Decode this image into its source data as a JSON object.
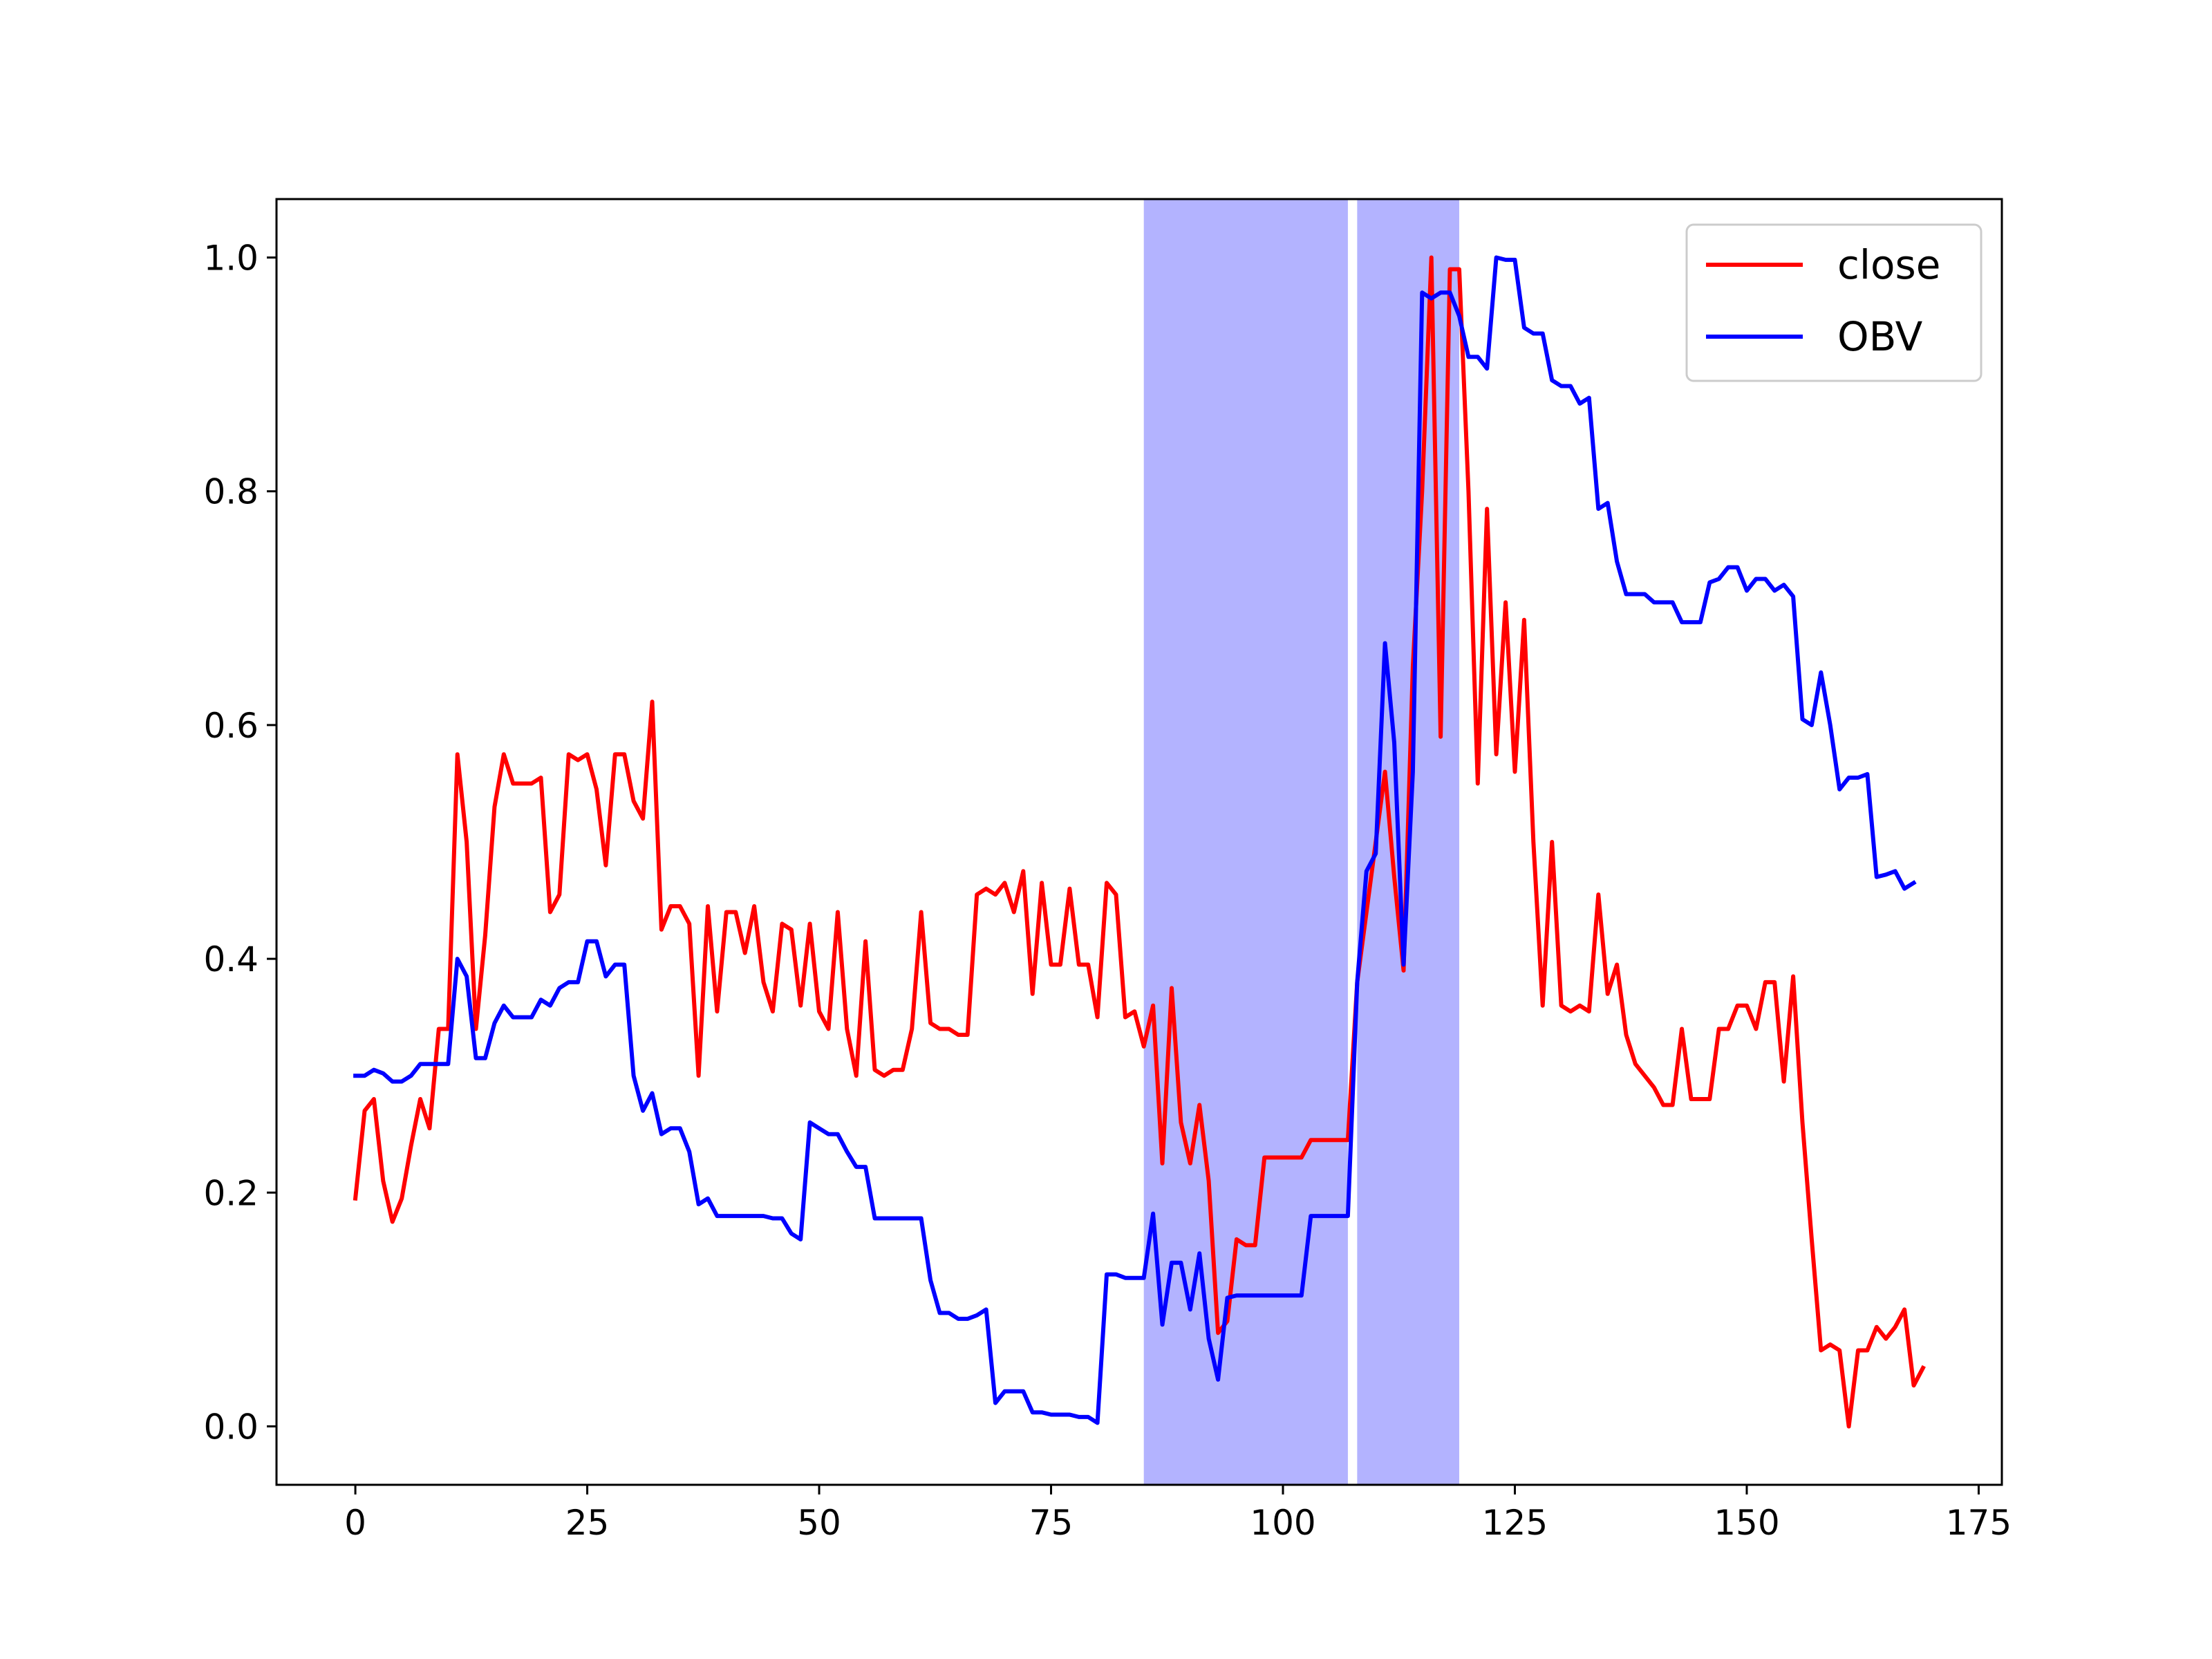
{
  "chart_data": {
    "type": "line",
    "title": "",
    "xlabel": "",
    "ylabel": "",
    "xlim": [
      -8.5,
      177.5
    ],
    "ylim": [
      -0.05,
      1.05
    ],
    "x_ticks": [
      0,
      25,
      50,
      75,
      100,
      125,
      150,
      175
    ],
    "x_tick_labels": [
      "0",
      "25",
      "50",
      "75",
      "100",
      "125",
      "150",
      "175"
    ],
    "y_ticks": [
      0.0,
      0.2,
      0.4,
      0.6,
      0.8,
      1.0
    ],
    "y_tick_labels": [
      "0.0",
      "0.2",
      "0.4",
      "0.6",
      "0.8",
      "1.0"
    ],
    "grid": false,
    "legend_position": "upper-right",
    "highlight_spans": [
      {
        "x_start": 85,
        "x_end": 107,
        "color": "#b3b3ff"
      },
      {
        "x_start": 108,
        "x_end": 119,
        "color": "#b3b3ff"
      }
    ],
    "series": [
      {
        "name": "close",
        "color": "#ff0000",
        "y": [
          0.195,
          0.27,
          0.28,
          0.21,
          0.175,
          0.195,
          0.24,
          0.28,
          0.255,
          0.34,
          0.34,
          0.575,
          0.5,
          0.34,
          0.42,
          0.53,
          0.575,
          0.55,
          0.55,
          0.55,
          0.555,
          0.44,
          0.455,
          0.575,
          0.57,
          0.575,
          0.545,
          0.48,
          0.575,
          0.575,
          0.535,
          0.52,
          0.62,
          0.425,
          0.445,
          0.445,
          0.43,
          0.3,
          0.445,
          0.355,
          0.44,
          0.44,
          0.405,
          0.445,
          0.38,
          0.355,
          0.43,
          0.425,
          0.36,
          0.43,
          0.355,
          0.34,
          0.44,
          0.34,
          0.3,
          0.415,
          0.305,
          0.3,
          0.305,
          0.305,
          0.34,
          0.44,
          0.345,
          0.34,
          0.34,
          0.335,
          0.335,
          0.455,
          0.46,
          0.455,
          0.465,
          0.44,
          0.475,
          0.37,
          0.465,
          0.395,
          0.395,
          0.46,
          0.395,
          0.395,
          0.35,
          0.465,
          0.455,
          0.35,
          0.355,
          0.325,
          0.36,
          0.225,
          0.375,
          0.26,
          0.225,
          0.275,
          0.21,
          0.08,
          0.09,
          0.16,
          0.155,
          0.155,
          0.23,
          0.23,
          0.23,
          0.23,
          0.23,
          0.245,
          0.245,
          0.245,
          0.245,
          0.245,
          0.38,
          0.44,
          0.5,
          0.56,
          0.47,
          0.39,
          0.65,
          0.8,
          1.0,
          0.59,
          0.99,
          0.99,
          0.8,
          0.55,
          0.785,
          0.575,
          0.705,
          0.56,
          0.69,
          0.5,
          0.36,
          0.5,
          0.36,
          0.355,
          0.36,
          0.355,
          0.455,
          0.37,
          0.395,
          0.335,
          0.31,
          0.3,
          0.29,
          0.275,
          0.275,
          0.34,
          0.28,
          0.28,
          0.28,
          0.34,
          0.34,
          0.36,
          0.36,
          0.34,
          0.38,
          0.38,
          0.295,
          0.385,
          0.26,
          0.16,
          0.065,
          0.07,
          0.065,
          0.0,
          0.065,
          0.065,
          0.085,
          0.075,
          0.085,
          0.1,
          0.035,
          0.05
        ]
      },
      {
        "name": "OBV",
        "color": "#0000ff",
        "y": [
          0.3,
          0.3,
          0.305,
          0.302,
          0.295,
          0.295,
          0.3,
          0.31,
          0.31,
          0.31,
          0.31,
          0.4,
          0.385,
          0.315,
          0.315,
          0.345,
          0.36,
          0.35,
          0.35,
          0.35,
          0.365,
          0.36,
          0.375,
          0.38,
          0.38,
          0.415,
          0.415,
          0.385,
          0.395,
          0.395,
          0.3,
          0.27,
          0.285,
          0.25,
          0.255,
          0.255,
          0.235,
          0.19,
          0.195,
          0.18,
          0.18,
          0.18,
          0.18,
          0.18,
          0.18,
          0.178,
          0.178,
          0.165,
          0.16,
          0.26,
          0.255,
          0.25,
          0.25,
          0.235,
          0.222,
          0.222,
          0.178,
          0.178,
          0.178,
          0.178,
          0.178,
          0.178,
          0.125,
          0.097,
          0.097,
          0.092,
          0.092,
          0.095,
          0.1,
          0.02,
          0.03,
          0.03,
          0.03,
          0.012,
          0.012,
          0.01,
          0.01,
          0.01,
          0.008,
          0.008,
          0.003,
          0.13,
          0.13,
          0.127,
          0.127,
          0.127,
          0.182,
          0.087,
          0.14,
          0.14,
          0.1,
          0.148,
          0.075,
          0.04,
          0.11,
          0.112,
          0.112,
          0.112,
          0.112,
          0.112,
          0.112,
          0.112,
          0.112,
          0.18,
          0.18,
          0.18,
          0.18,
          0.18,
          0.38,
          0.475,
          0.49,
          0.67,
          0.585,
          0.395,
          0.56,
          0.97,
          0.965,
          0.97,
          0.97,
          0.95,
          0.915,
          0.915,
          0.905,
          1.0,
          0.998,
          0.998,
          0.94,
          0.935,
          0.935,
          0.895,
          0.89,
          0.89,
          0.875,
          0.88,
          0.785,
          0.79,
          0.74,
          0.712,
          0.712,
          0.712,
          0.705,
          0.705,
          0.705,
          0.688,
          0.688,
          0.688,
          0.722,
          0.725,
          0.735,
          0.735,
          0.715,
          0.725,
          0.725,
          0.715,
          0.72,
          0.71,
          0.605,
          0.6,
          0.645,
          0.6,
          0.545,
          0.555,
          0.555,
          0.558,
          0.47,
          0.472,
          0.475,
          0.46,
          0.465
        ]
      }
    ]
  }
}
